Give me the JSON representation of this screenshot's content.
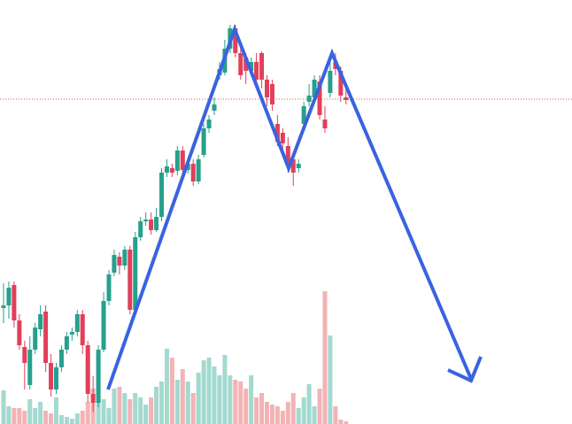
{
  "chart_data": {
    "type": "candlestick",
    "open": [
      131,
      134,
      157,
      117,
      87,
      44,
      84,
      107,
      127,
      69,
      39,
      64,
      84,
      101,
      104,
      124,
      89,
      34,
      24,
      84,
      139,
      171,
      189,
      179,
      197,
      129,
      211,
      229,
      231,
      219,
      234,
      284,
      289,
      286,
      309,
      287,
      294,
      274,
      304,
      334,
      354,
      394,
      397,
      424,
      447,
      419,
      414,
      399,
      409,
      419,
      389,
      384,
      339,
      329,
      314,
      299,
      289,
      339,
      364,
      369,
      387,
      344,
      374,
      409,
      399,
      369
    ],
    "close": [
      134,
      154,
      117,
      89,
      69,
      84,
      109,
      124,
      69,
      39,
      64,
      84,
      99,
      104,
      124,
      89,
      34,
      24,
      84,
      139,
      169,
      191,
      179,
      197,
      129,
      211,
      229,
      231,
      219,
      234,
      284,
      291,
      284,
      309,
      287,
      294,
      274,
      299,
      334,
      344,
      361,
      401,
      424,
      447,
      419,
      394,
      399,
      409,
      389,
      389,
      369,
      361,
      319,
      317,
      294,
      284,
      294,
      359,
      371,
      389,
      349,
      334,
      399,
      401,
      371,
      366
    ],
    "high": [
      159,
      161,
      161,
      124,
      94,
      99,
      114,
      134,
      134,
      79,
      69,
      89,
      104,
      109,
      129,
      129,
      94,
      54,
      89,
      149,
      174,
      197,
      194,
      201,
      201,
      217,
      234,
      239,
      239,
      244,
      289,
      299,
      294,
      314,
      314,
      301,
      299,
      304,
      339,
      349,
      369,
      409,
      434,
      451,
      451,
      424,
      419,
      414,
      419,
      421,
      394,
      389,
      349,
      334,
      324,
      304,
      299,
      364,
      384,
      394,
      394,
      359,
      409,
      419,
      404,
      379
    ],
    "low": [
      114,
      119,
      109,
      84,
      39,
      39,
      79,
      99,
      59,
      31,
      34,
      59,
      79,
      94,
      99,
      79,
      24,
      14,
      19,
      81,
      134,
      167,
      169,
      174,
      124,
      127,
      207,
      224,
      214,
      217,
      229,
      279,
      279,
      281,
      281,
      283,
      269,
      271,
      301,
      329,
      349,
      389,
      394,
      419,
      414,
      389,
      384,
      394,
      379,
      379,
      359,
      354,
      314,
      309,
      284,
      269,
      284,
      334,
      359,
      364,
      344,
      329,
      369,
      394,
      364,
      361
    ],
    "volume": [
      38,
      20,
      18,
      18,
      15,
      28,
      18,
      25,
      15,
      12,
      30,
      10,
      8,
      6,
      12,
      15,
      25,
      40,
      25,
      28,
      18,
      40,
      42,
      35,
      28,
      35,
      30,
      22,
      30,
      42,
      48,
      85,
      75,
      50,
      62,
      48,
      35,
      58,
      72,
      75,
      65,
      55,
      78,
      55,
      50,
      48,
      40,
      55,
      30,
      35,
      25,
      22,
      20,
      15,
      25,
      35,
      18,
      30,
      45,
      20,
      40,
      150,
      100,
      20,
      5,
      3
    ],
    "ylim": [
      0,
      479
    ],
    "y2lim": [
      0,
      479
    ],
    "price_line": 367,
    "up_color": "#26a08c",
    "down_color": "#e0405a",
    "up_volume_color": "#a3d9cf",
    "down_volume_color": "#f3b3b5",
    "price_line_color": "#d9534f"
  }
}
